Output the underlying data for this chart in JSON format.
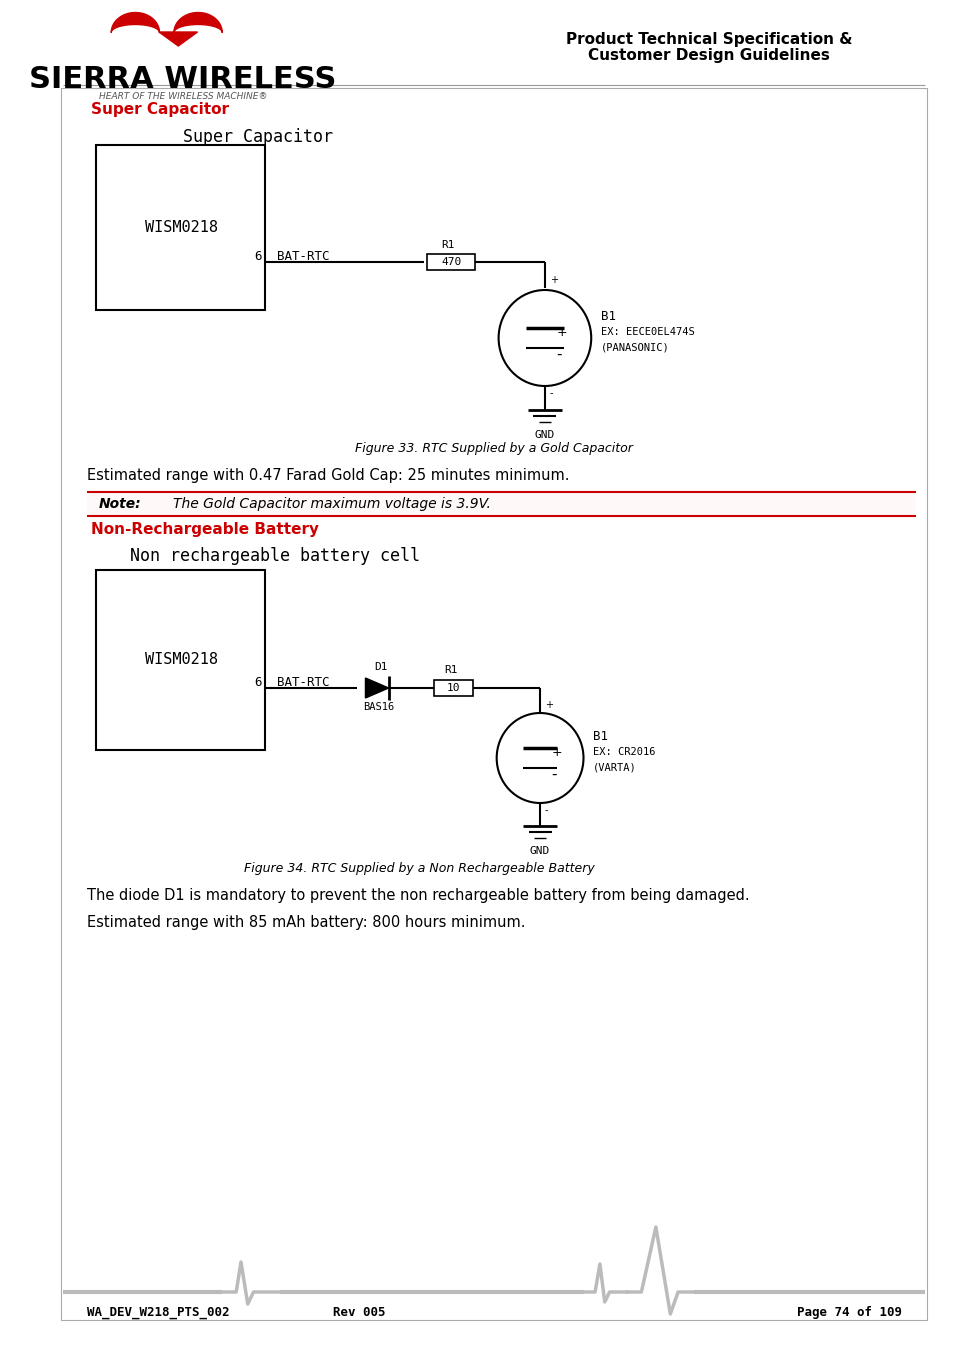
{
  "page_bg": "#ffffff",
  "border_color": "#cccccc",
  "header_line_color": "#cccccc",
  "logo_text": "SIERRA WIRELESS",
  "logo_sub": "HEART OF THE WIRELESS MACHINE®",
  "logo_color": "#000000",
  "logo_red": "#cc0000",
  "header_right_line1": "Product Technical Specification &",
  "header_right_line2": "Customer Design Guidelines",
  "section1_title": "Super Capacitor",
  "section1_color": "#cc0000",
  "section1_diagram_title": "Super Capacitor",
  "section1_box_label": "WISM0218",
  "section1_pin": "6",
  "section1_net": "BAT-RTC",
  "section1_r_label": "R1",
  "section1_r_value": "470",
  "section1_cap_label": "B1",
  "section1_cap_ex": "EX: EECE0EL474S",
  "section1_cap_brand": "(PANASONIC)",
  "section1_gnd": "GND",
  "fig33_caption": "Figure 33. RTC Supplied by a Gold Capacitor",
  "text1": "Estimated range with 0.47 Farad Gold Cap: 25 minutes minimum.",
  "note_label": "Note:",
  "note_text": "The Gold Capacitor maximum voltage is 3.9V.",
  "note_bg": "#ffffff",
  "note_border": "#cc0000",
  "section2_title": "Non-Rechargeable Battery",
  "section2_color": "#cc0000",
  "section2_diagram_title": "Non rechargeable battery cell",
  "section2_box_label": "WISM0218",
  "section2_pin": "6",
  "section2_net": "BAT-RTC",
  "section2_d_label": "D1",
  "section2_d_name": "BAS16",
  "section2_r_label": "R1",
  "section2_r_value": "10",
  "section2_bat_label": "B1",
  "section2_bat_ex": "EX: CR2016",
  "section2_bat_brand": "(VARTA)",
  "section2_gnd": "GND",
  "fig34_caption": "Figure 34. RTC Supplied by a Non Rechargeable Battery",
  "text2": "The diode D1 is mandatory to prevent the non rechargeable battery from being damaged.",
  "text3": "Estimated range with 85 mAh battery: 800 hours minimum.",
  "footer_left": "WA_DEV_W218_PTS_002",
  "footer_mid": "Rev 005",
  "footer_right": "Page 74 of 109",
  "footer_line_color": "#aaaaaa"
}
